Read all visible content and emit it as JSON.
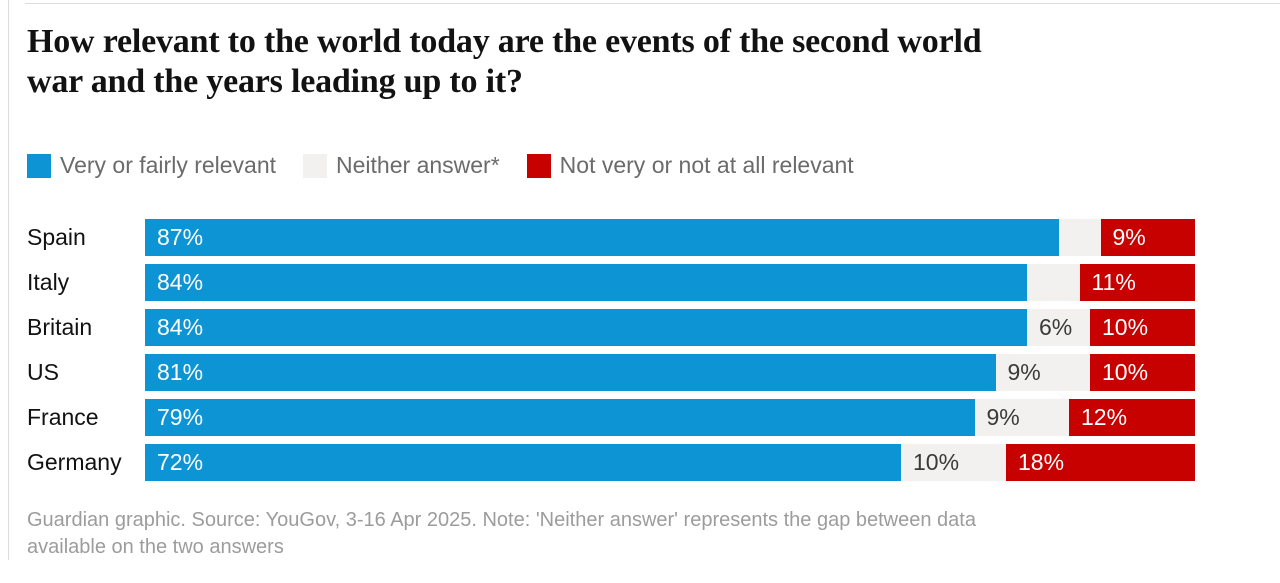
{
  "title": {
    "line1": "How relevant to the world today are the events of the second world",
    "line2": "war and the years leading up to it?"
  },
  "legend": [
    {
      "key": "relevant",
      "label": "Very or fairly relevant",
      "color": "#0d94d4"
    },
    {
      "key": "neither",
      "label": "Neither answer*",
      "color": "#f2f1ef"
    },
    {
      "key": "not-relevant",
      "label": "Not very or not at all relevant",
      "color": "#c70000"
    }
  ],
  "footer": {
    "line1": "Guardian graphic. Source: YouGov, 3-16 Apr 2025. Note: 'Neither answer' represents the gap between data",
    "line2": "available on the two answers"
  },
  "colors": {
    "blue": "#0d94d4",
    "neutral": "#f2f1ef",
    "red": "#c70000",
    "title_text": "#121212",
    "legend_text": "#6b6b6b",
    "neither_label_text": "#3a3a3a",
    "bar_label_text": "#ffffff",
    "footer_text": "#9c9c9c",
    "divider": "#dcdcdc"
  },
  "chart_data": {
    "type": "bar",
    "orientation": "horizontal",
    "stacked": true,
    "title": "How relevant to the world today are the events of the second world war and the years leading up to it?",
    "categories": [
      "Spain",
      "Italy",
      "Britain",
      "US",
      "France",
      "Germany"
    ],
    "series": [
      {
        "name": "Very or fairly relevant",
        "key": "relevant",
        "color": "#0d94d4",
        "label_color": "#ffffff",
        "values": [
          87,
          84,
          84,
          81,
          79,
          72
        ],
        "labels": [
          "87%",
          "84%",
          "84%",
          "81%",
          "79%",
          "72%"
        ]
      },
      {
        "name": "Neither answer*",
        "key": "neither",
        "color": "#f2f1ef",
        "label_color": "#3a3a3a",
        "values": [
          4,
          5,
          6,
          9,
          9,
          10
        ],
        "labels": [
          "",
          "",
          "6%",
          "9%",
          "9%",
          "10%"
        ]
      },
      {
        "name": "Not very or not at all relevant",
        "key": "not-relevant",
        "color": "#c70000",
        "label_color": "#ffffff",
        "values": [
          9,
          11,
          10,
          10,
          12,
          18
        ],
        "labels": [
          "9%",
          "11%",
          "10%",
          "10%",
          "12%",
          "18%"
        ]
      }
    ],
    "xlim": [
      0,
      100
    ],
    "grid": false,
    "legend_position": "top",
    "source_note": "Guardian graphic. Source: YouGov, 3-16 Apr 2025. Note: 'Neither answer' represents the gap between data available on the two answers"
  }
}
